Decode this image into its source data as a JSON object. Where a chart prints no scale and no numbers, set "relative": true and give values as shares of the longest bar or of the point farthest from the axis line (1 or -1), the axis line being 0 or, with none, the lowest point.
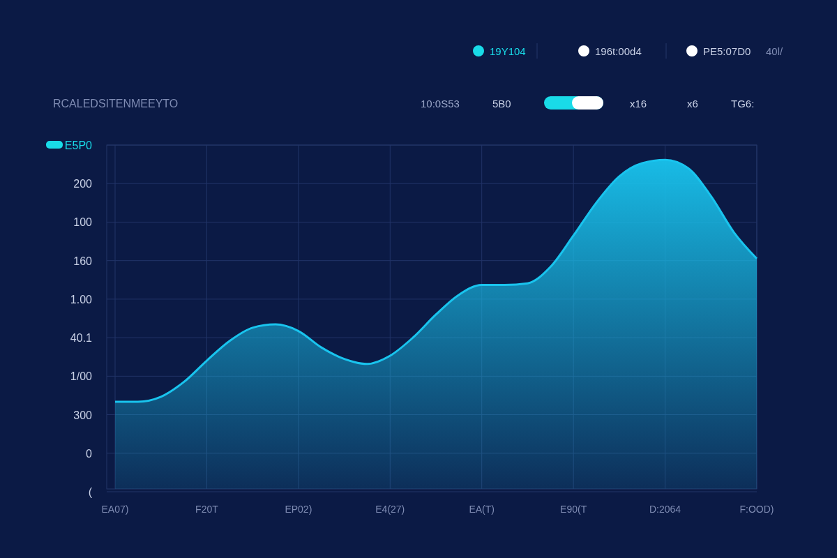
{
  "chart_data": {
    "type": "area",
    "subtitle": "RCALEDSITENMEEYTO",
    "relative": true,
    "annotations": [
      "19Y104",
      "196t:00d4",
      "PE5:07D0",
      "40l/",
      "10:0S53",
      "5B0",
      "x16",
      "x6",
      "TG6:",
      "E5P0",
      "200",
      "100",
      "160",
      "1.00",
      "40.1",
      "1/00",
      "300",
      "0",
      "("
    ],
    "categories": [
      "EA07)",
      null,
      null,
      null,
      "F20T",
      null,
      null,
      null,
      "EP02)",
      null,
      null,
      null,
      "E4(27)",
      null,
      null,
      null,
      "EA(T)",
      null,
      null,
      null,
      "E90(T",
      null,
      null,
      null,
      "D:2064",
      null,
      null,
      null,
      "F:OOD)"
    ],
    "grid": true,
    "series": [
      {
        "color": "#19c4ee",
        "values": [
          0.265,
          0.265,
          0.28,
          0.325,
          0.39,
          0.45,
          0.49,
          0.5,
          0.48,
          0.43,
          0.395,
          0.38,
          0.405,
          0.46,
          0.53,
          0.59,
          0.62,
          0.62,
          0.625,
          0.675,
          0.77,
          0.87,
          0.95,
          0.99,
          1,
          0.975,
          0.89,
          0.78,
          0.7
        ]
      }
    ]
  }
}
